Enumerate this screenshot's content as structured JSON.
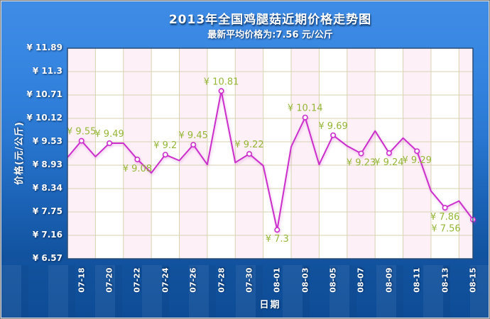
{
  "header": {
    "title": "2013年全国鸡腿菇近期价格走势图",
    "subtitle": "最新平均价格为:7.56 元/公斤"
  },
  "colors": {
    "line": "#cb2fcb",
    "marker_fill": "#ffffff",
    "point_label": "#95b637",
    "grid": "#d8d2b2",
    "band_pink": "#fdf1f7",
    "band_white": "#ffffff",
    "plot_border": "#2b4d74",
    "background_top": "#3f8ce6",
    "background_bottom": "#0e4c96"
  },
  "chart_data": {
    "type": "line",
    "title": "2013年全国鸡腿菇近期价格走势图",
    "subtitle": "最新平均价格为:7.56 元/公斤",
    "xlabel": "日期",
    "ylabel": "价格(元/公斤)",
    "ylim": [
      6.57,
      11.89
    ],
    "grid": true,
    "legend": "none",
    "y_ticks": [
      "¥ 11.89",
      "¥ 11.3",
      "¥ 10.71",
      "¥ 10.12",
      "¥ 9.53",
      "¥ 8.93",
      "¥ 8.34",
      "¥ 7.75",
      "¥ 7.16",
      "¥ 6.57"
    ],
    "x_ticks": [
      "07-18",
      "07-20",
      "07-22",
      "07-24",
      "07-26",
      "07-28",
      "07-30",
      "08-01",
      "08-03",
      "08-05",
      "08-07",
      "08-09",
      "08-11",
      "08-13",
      "08-15"
    ],
    "points": [
      {
        "date": "07-17",
        "value": 9.13
      },
      {
        "date": "07-18",
        "value": 9.55,
        "label": "¥ 9.55",
        "label_pos": "above"
      },
      {
        "date": "07-19",
        "value": 9.15
      },
      {
        "date": "07-20",
        "value": 9.49,
        "label": "¥ 9.49",
        "label_pos": "above"
      },
      {
        "date": "07-21",
        "value": 9.49
      },
      {
        "date": "07-22",
        "value": 9.08,
        "label": "¥ 9.08",
        "label_pos": "below"
      },
      {
        "date": "07-23",
        "value": 8.74
      },
      {
        "date": "07-24",
        "value": 9.2,
        "label": "¥ 9.2",
        "label_pos": "above"
      },
      {
        "date": "07-25",
        "value": 9.05
      },
      {
        "date": "07-26",
        "value": 9.45,
        "label": "¥ 9.45",
        "label_pos": "above"
      },
      {
        "date": "07-27",
        "value": 8.95
      },
      {
        "date": "07-28",
        "value": 10.81,
        "label": "¥ 10.81",
        "label_pos": "above"
      },
      {
        "date": "07-29",
        "value": 9.0
      },
      {
        "date": "07-30",
        "value": 9.22,
        "label": "¥ 9.22",
        "label_pos": "above"
      },
      {
        "date": "07-31",
        "value": 8.92
      },
      {
        "date": "08-01",
        "value": 7.3,
        "label": "¥ 7.3",
        "label_pos": "below"
      },
      {
        "date": "08-02",
        "value": 9.4
      },
      {
        "date": "08-03",
        "value": 10.14,
        "label": "¥ 10.14",
        "label_pos": "above"
      },
      {
        "date": "08-04",
        "value": 8.95
      },
      {
        "date": "08-05",
        "value": 9.69,
        "label": "¥ 9.69",
        "label_pos": "above"
      },
      {
        "date": "08-06",
        "value": 9.42
      },
      {
        "date": "08-07",
        "value": 9.23,
        "label": "¥ 9.23",
        "label_pos": "below"
      },
      {
        "date": "08-08",
        "value": 9.8
      },
      {
        "date": "08-09",
        "value": 9.24,
        "label": "¥ 9.24",
        "label_pos": "below"
      },
      {
        "date": "08-10",
        "value": 9.62
      },
      {
        "date": "08-11",
        "value": 9.29,
        "label": "¥ 9.29",
        "label_pos": "below"
      },
      {
        "date": "08-12",
        "value": 8.28
      },
      {
        "date": "08-13",
        "value": 7.86,
        "label": "¥ 7.86",
        "label_pos": "below"
      },
      {
        "date": "08-14",
        "value": 8.03
      },
      {
        "date": "08-15",
        "value": 7.56,
        "label": "¥ 7.56",
        "label_pos": "below",
        "label_dx": -38
      }
    ]
  }
}
